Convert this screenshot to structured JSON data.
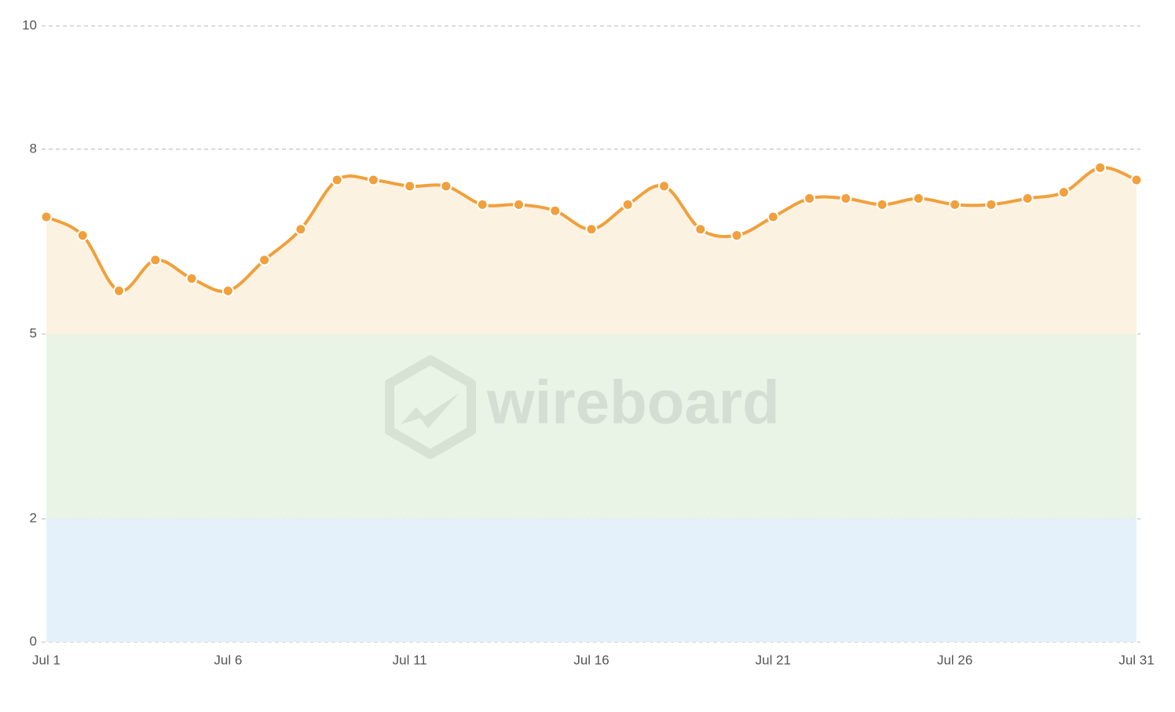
{
  "chart_data": {
    "type": "line",
    "categories": [
      "Jul 1",
      null,
      null,
      null,
      null,
      "Jul 6",
      null,
      null,
      null,
      null,
      "Jul 11",
      null,
      null,
      null,
      null,
      "Jul 16",
      null,
      null,
      null,
      null,
      "Jul 21",
      null,
      null,
      null,
      null,
      "Jul 26",
      null,
      null,
      null,
      null,
      "Jul 31"
    ],
    "series": [
      {
        "color": "#f0a03c",
        "fill_color": "#fcf2e2",
        "values": [
          6.9,
          6.6,
          5.7,
          6.2,
          5.9,
          5.7,
          6.2,
          6.7,
          7.5,
          7.5,
          7.4,
          7.4,
          7.1,
          7.1,
          7.0,
          6.7,
          7.1,
          7.4,
          6.7,
          6.6,
          6.9,
          7.2,
          7.2,
          7.1,
          7.2,
          7.1,
          7.1,
          7.2,
          7.3,
          7.7,
          7.5
        ]
      }
    ],
    "area_from": 5,
    "bands": [
      {
        "from": 0,
        "to": 2,
        "color": "#e5f1fa"
      },
      {
        "from": 2,
        "to": 5,
        "color": "#e9f3e6"
      }
    ],
    "ylim": [
      0,
      10
    ],
    "yticks": [
      0,
      2,
      5,
      8,
      10
    ],
    "grid": true,
    "watermark": "wireboard"
  }
}
